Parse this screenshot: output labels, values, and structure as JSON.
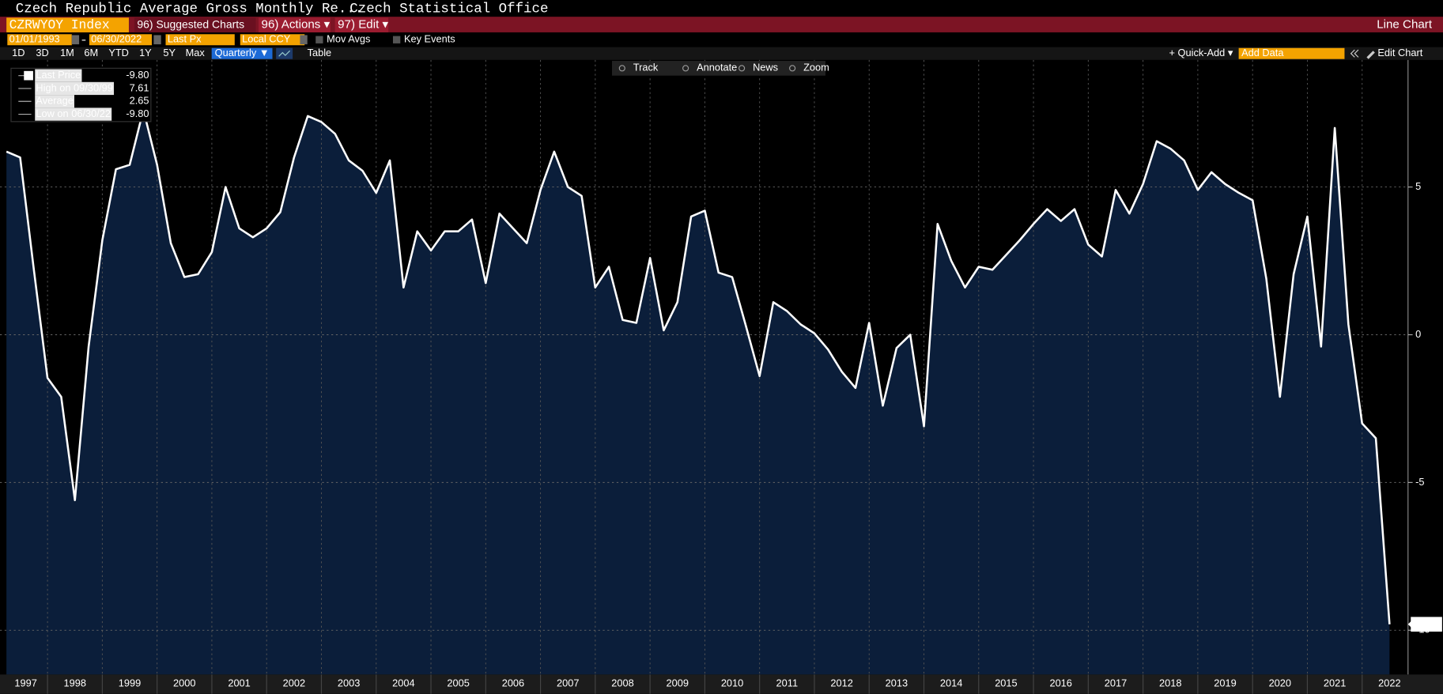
{
  "header": {
    "title": "Czech Republic Average Gross Monthly Re...",
    "source": "Czech Statistical Office",
    "ticker": "CZRWYOY Index",
    "menu": [
      "96) Suggested Charts",
      "96) Actions ▾",
      "97) Edit ▾"
    ],
    "view": "Line Chart"
  },
  "controls": {
    "start_date": "01/01/1993",
    "end_date": "06/30/2022",
    "field": "Last Px",
    "currency": "Local CCY",
    "options": [
      "Mov Avgs",
      "Key Events"
    ]
  },
  "toolbar": {
    "periods": [
      "1D",
      "3D",
      "1M",
      "6M",
      "YTD",
      "1Y",
      "5Y",
      "Max"
    ],
    "frequency": "Quarterly ▼",
    "table": "Table",
    "quick_add": "+ Quick-Add ▾",
    "add_data": "Add Data",
    "edit_chart": "Edit Chart"
  },
  "chart_tools": [
    "Track",
    "Annotate",
    "News",
    "Zoom"
  ],
  "stats": [
    {
      "label": "High on 09/30/99",
      "value": "7.61"
    },
    {
      "label": "Average",
      "value": "2.65"
    },
    {
      "label": "Low on 06/30/22",
      "value": "-9.80"
    }
  ],
  "chart_data": {
    "type": "line",
    "x_labels": [
      "1997",
      "1998",
      "1999",
      "2000",
      "2001",
      "2002",
      "2003",
      "2004",
      "2005",
      "2006",
      "2007",
      "2008",
      "2009",
      "2010",
      "2011",
      "2012",
      "2013",
      "2014",
      "2015",
      "2016",
      "2017",
      "2018",
      "2019",
      "2020",
      "2021",
      "2022"
    ],
    "series": [
      {
        "name": "Last Price",
        "color": "#ffffff",
        "fill": "#0b1e3a",
        "values": [
          6.2,
          6.0,
          2.2,
          -1.46,
          -2.1,
          -5.6,
          -0.4,
          3.2,
          5.6,
          5.75,
          7.61,
          5.75,
          3.1,
          1.95,
          2.05,
          2.8,
          5.0,
          3.6,
          3.3,
          3.6,
          4.15,
          6.0,
          7.4,
          7.2,
          6.8,
          5.9,
          5.55,
          4.8,
          5.9,
          1.6,
          3.5,
          2.85,
          3.5,
          3.5,
          3.9,
          1.75,
          4.1,
          3.6,
          3.1,
          4.9,
          6.2,
          5.0,
          4.7,
          1.6,
          2.3,
          0.5,
          0.4,
          2.6,
          0.15,
          1.1,
          4.0,
          4.2,
          2.1,
          1.95,
          0.3,
          -1.4,
          1.1,
          0.8,
          0.35,
          0.05,
          -0.5,
          -1.25,
          -1.8,
          0.4,
          -2.4,
          -0.45,
          0.0,
          -3.1,
          3.75,
          2.5,
          1.6,
          2.3,
          2.2,
          2.7,
          3.2,
          3.75,
          4.25,
          3.85,
          4.25,
          3.05,
          2.65,
          4.9,
          4.1,
          5.1,
          6.55,
          6.3,
          5.9,
          4.9,
          5.5,
          5.1,
          4.8,
          4.55,
          1.9,
          -2.1,
          2.05,
          4.0,
          -0.4,
          7.0,
          0.35,
          -3.0,
          -3.5,
          -9.8
        ],
        "value_labels": [
          null,
          null,
          null,
          null,
          null,
          null,
          null,
          null,
          null,
          null,
          null,
          null,
          null,
          null,
          null,
          null,
          null,
          null,
          null,
          null,
          null,
          null,
          null,
          null,
          null,
          null,
          null,
          null,
          null,
          null,
          null,
          null,
          null,
          null,
          null,
          null,
          null,
          null,
          null,
          null,
          null,
          null,
          null,
          null,
          null,
          null,
          null,
          null,
          null,
          null,
          null,
          null,
          null,
          null,
          null,
          null,
          null,
          null,
          null,
          null,
          null,
          null,
          null,
          null,
          null,
          null,
          null,
          null,
          null,
          null,
          null,
          null,
          null,
          null,
          null,
          null,
          null,
          null,
          null,
          null,
          null,
          null,
          null,
          null,
          null,
          null,
          null,
          null,
          null,
          null,
          null,
          null,
          null,
          null,
          null,
          null,
          null,
          null,
          null,
          null,
          null,
          "-9.80"
        ]
      }
    ],
    "ylim": [
      -11.5,
      9.3
    ],
    "yticks": [
      -10,
      -5,
      0,
      5
    ],
    "grid": true
  }
}
